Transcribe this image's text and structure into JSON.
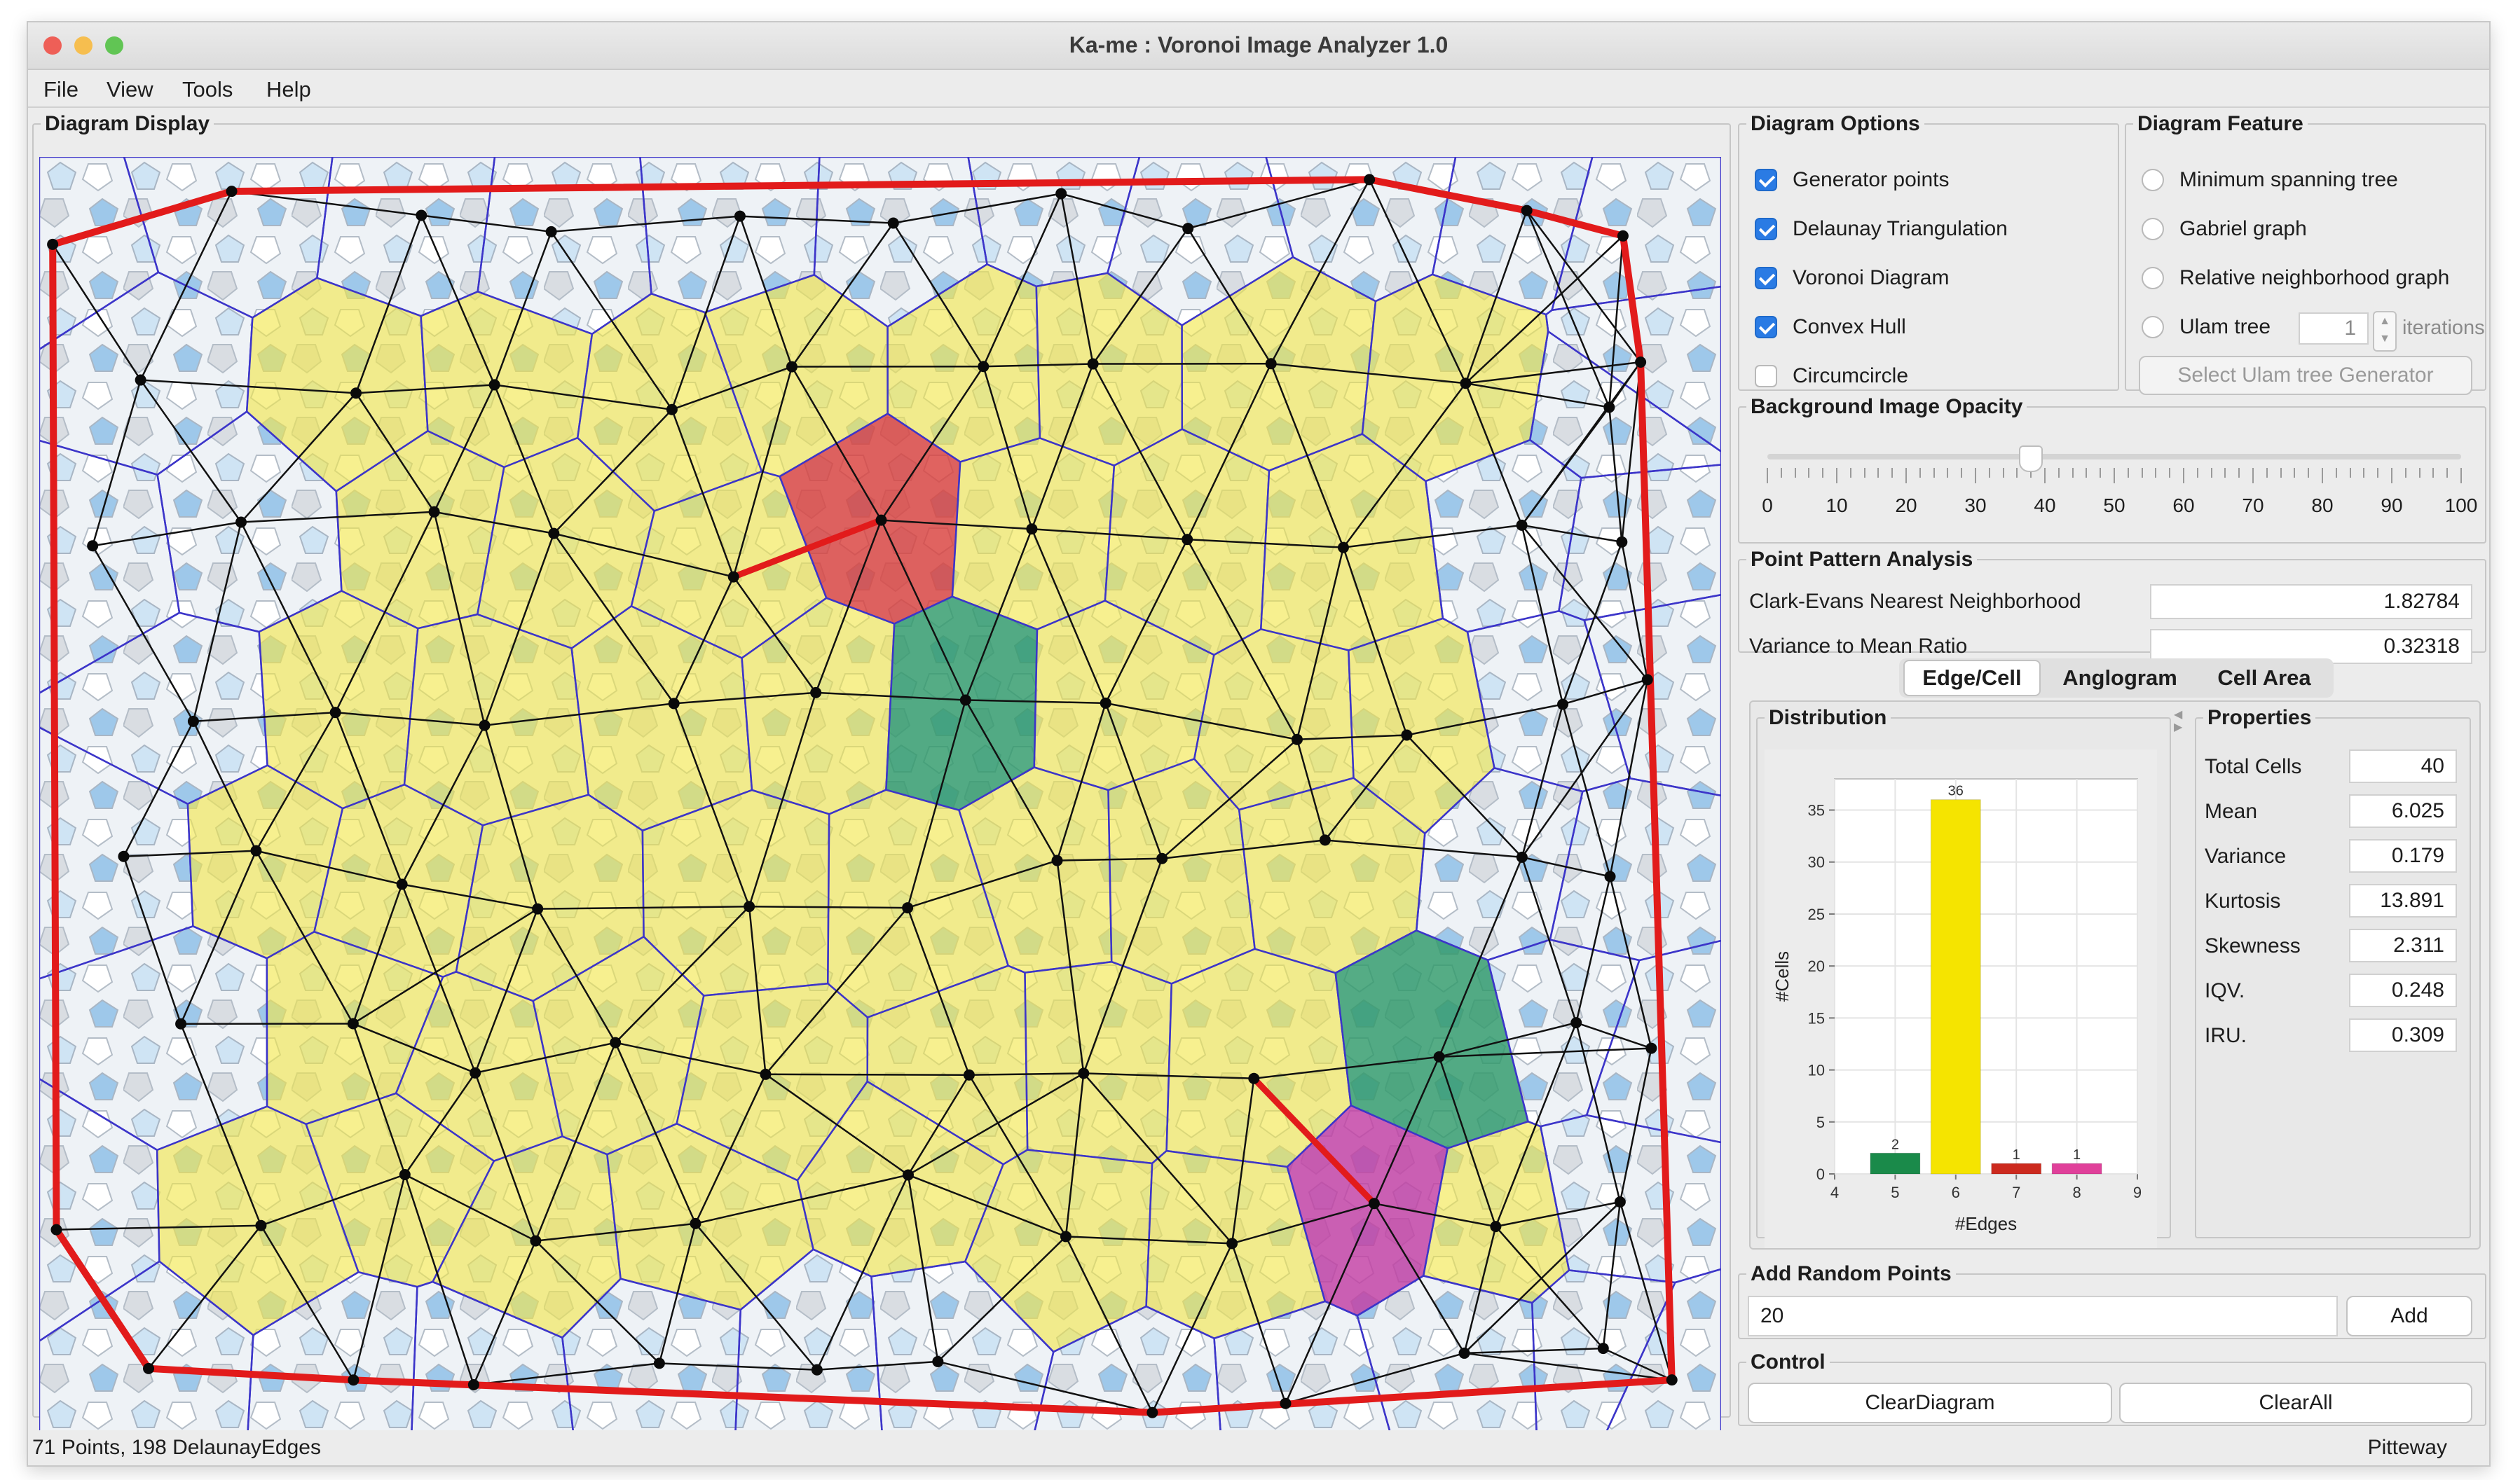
{
  "window": {
    "title": "Ka-me : Voronoi Image Analyzer 1.0"
  },
  "menu": [
    "File",
    "View",
    "Tools",
    "Help"
  ],
  "display": {
    "title": "Diagram Display"
  },
  "diagram_options": {
    "title": "Diagram Options",
    "items": [
      {
        "label": "Generator points",
        "checked": true
      },
      {
        "label": "Delaunay Triangulation",
        "checked": true
      },
      {
        "label": "Voronoi Diagram",
        "checked": true
      },
      {
        "label": "Convex Hull",
        "checked": true
      },
      {
        "label": "Circumcircle",
        "checked": false
      }
    ]
  },
  "diagram_feature": {
    "title": "Diagram Feature",
    "items": [
      {
        "label": "Minimum spanning tree"
      },
      {
        "label": "Gabriel graph"
      },
      {
        "label": "Relative neighborhood graph"
      },
      {
        "label": "Ulam tree"
      }
    ],
    "ulam_iterations": "1",
    "iterations_label": "iterations",
    "select_button": "Select Ulam tree Generator"
  },
  "opacity": {
    "title": "Background Image Opacity",
    "value": 38,
    "ticks": [
      "0",
      "10",
      "20",
      "30",
      "40",
      "50",
      "60",
      "70",
      "80",
      "90",
      "100"
    ]
  },
  "point_pattern": {
    "title": "Point Pattern Analysis",
    "rows": [
      {
        "label": "Clark-Evans Nearest Neighborhood",
        "value": "1.82784"
      },
      {
        "label": "Variance to Mean Ratio",
        "value": "0.32318"
      }
    ]
  },
  "tabs": [
    "Edge/Cell",
    "Anglogram",
    "Cell Area"
  ],
  "distribution": {
    "title": "Distribution"
  },
  "chart_data": {
    "type": "bar",
    "x": [
      5,
      6,
      7,
      8
    ],
    "values": [
      2,
      36,
      1,
      1
    ],
    "value_labels": [
      "2",
      "36",
      "1",
      "1"
    ],
    "colors": [
      "#1a8a4a",
      "#f5e400",
      "#cc2a1e",
      "#e0409a"
    ],
    "xlabel": "#Edges",
    "ylabel": "#Cells",
    "xlim": [
      4,
      9
    ],
    "ylim": [
      0,
      38
    ],
    "xticks": [
      "4",
      "5",
      "6",
      "7",
      "8",
      "9"
    ],
    "yticks": [
      "0",
      "5",
      "10",
      "15",
      "20",
      "25",
      "30",
      "35"
    ]
  },
  "properties": {
    "title": "Properties",
    "rows": [
      {
        "label": "Total Cells",
        "value": "40"
      },
      {
        "label": "Mean",
        "value": "6.025"
      },
      {
        "label": "Variance",
        "value": "0.179"
      },
      {
        "label": "Kurtosis",
        "value": "13.891"
      },
      {
        "label": "Skewness",
        "value": "2.311"
      },
      {
        "label": "IQV.",
        "value": "0.248"
      },
      {
        "label": "IRU.",
        "value": "0.309"
      }
    ]
  },
  "add_random": {
    "title": "Add Random Points",
    "value": "20",
    "button": "Add"
  },
  "control": {
    "title": "Control",
    "clear_diagram": "ClearDiagram",
    "clear_all": "ClearAll"
  },
  "status": {
    "left": "71 Points, 198 DelaunayEdges",
    "right": "Pitteway"
  },
  "colors": {
    "accent": "#2a7be4",
    "hull": "#e21b1b",
    "voronoi_edge": "#3c35c9",
    "cell_yellow": "#f2e64a",
    "cell_red": "#d9413d",
    "cell_green": "#2f9a6a",
    "cell_magenta": "#c23ea3"
  }
}
